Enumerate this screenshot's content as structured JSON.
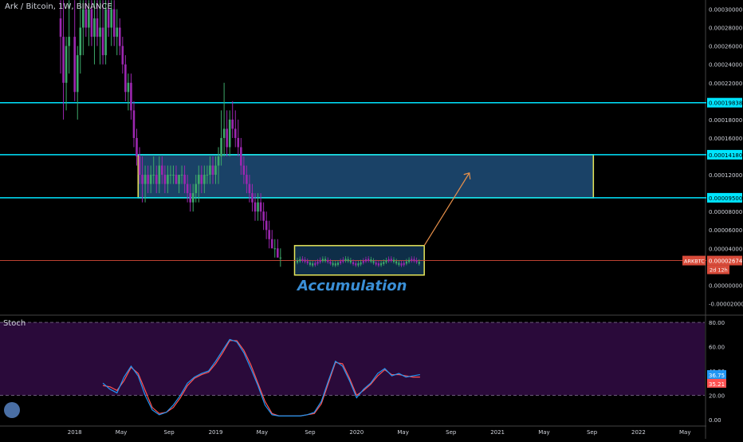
{
  "header": {
    "symbol_line": "Ark / Bitcoin, 1W, BINANCE"
  },
  "annotation": {
    "text": "Accumulation"
  },
  "price_tag": {
    "symbol": "ARKBTC",
    "price": "0.00002674",
    "countdown": "2d 12h"
  },
  "stoch": {
    "title": "Stoch",
    "k_value": "36.75",
    "d_value": "35.21"
  },
  "colors": {
    "background": "#000000",
    "up_candle": "#3da86a",
    "down_candle": "#9c27b0",
    "support_line": "#00e5ff",
    "zone_fill": "#1f4e79",
    "zone_border": "#e6e65a",
    "current_line": "#d84b3a",
    "arrow": "#e8904a",
    "annotation": "#3a8fd6",
    "stoch_k": "#2196f3",
    "stoch_d": "#ff5252",
    "stoch_band": "#2a0a3a",
    "axis_text": "#d1d4dc"
  },
  "chart_data": {
    "type": "line",
    "price_axis": {
      "ylim": [
        -3e-05,
        0.00031
      ],
      "tick_labels": [
        "0.00030000",
        "0.00028000",
        "0.00026000",
        "0.00024000",
        "0.00022000",
        "0.00018000",
        "0.00016000",
        "0.00012000",
        "0.00008000",
        "0.00006000",
        "0.00004000",
        "0.00000000",
        "-0.00002000"
      ],
      "tick_values": [
        0.0003,
        0.00028,
        0.00026,
        0.00024,
        0.00022,
        0.00018,
        0.00016,
        0.00012,
        8e-05,
        6e-05,
        4e-05,
        0.0,
        -2e-05
      ]
    },
    "time_axis": {
      "labels": [
        "2018",
        "May",
        "Sep",
        "2019",
        "May",
        "Sep",
        "2020",
        "May",
        "Sep",
        "2021",
        "May",
        "Sep",
        "2022",
        "May"
      ],
      "values": [
        2018.0,
        2018.33,
        2018.67,
        2019.0,
        2019.33,
        2019.67,
        2020.0,
        2020.33,
        2020.67,
        2021.0,
        2021.33,
        2021.67,
        2022.0,
        2022.33
      ]
    },
    "horizontal_levels": [
      {
        "label": "0.00019838",
        "value": 0.00019838
      },
      {
        "label": "0.00014180",
        "value": 0.0001418
      },
      {
        "label": "0.00009500",
        "value": 9.5e-05
      }
    ],
    "current_price": 2.674e-05,
    "zones": [
      {
        "name": "resistance-zone",
        "x_start": 2018.45,
        "x_end": 2021.68,
        "y_low": 9.5e-05,
        "y_high": 0.0001418
      },
      {
        "name": "accumulation-zone",
        "x_start": 2019.56,
        "x_end": 2020.48,
        "y_low": 1.1e-05,
        "y_high": 4.3e-05
      }
    ],
    "arrow": {
      "x_start": 2020.48,
      "y_start": 4.3e-05,
      "x_end": 2020.8,
      "y_end": 0.000122
    },
    "candles_ohlc_approx": [
      [
        2017.9,
        0.00029,
        0.00031,
        0.00023,
        0.00027
      ],
      [
        2017.92,
        0.00027,
        0.00031,
        0.00018,
        0.00022
      ],
      [
        2017.94,
        0.00022,
        0.00027,
        0.00019,
        0.00026
      ],
      [
        2017.96,
        0.00026,
        0.00031,
        0.00023,
        0.00027
      ],
      [
        2018.0,
        0.00027,
        0.00031,
        0.0002,
        0.00021
      ],
      [
        2018.02,
        0.00021,
        0.00026,
        0.00018,
        0.00025
      ],
      [
        2018.04,
        0.00025,
        0.00031,
        0.00023,
        0.00028
      ],
      [
        2018.06,
        0.00028,
        0.00031,
        0.00025,
        0.0003
      ],
      [
        2018.08,
        0.0003,
        0.00031,
        0.00027,
        0.00028
      ],
      [
        2018.1,
        0.00028,
        0.00031,
        0.00026,
        0.0003
      ],
      [
        2018.12,
        0.0003,
        0.00031,
        0.00026,
        0.00027
      ],
      [
        2018.14,
        0.00027,
        0.00031,
        0.00024,
        0.00029
      ],
      [
        2018.16,
        0.00029,
        0.00031,
        0.00026,
        0.00027
      ],
      [
        2018.18,
        0.00027,
        0.00031,
        0.00024,
        0.00028
      ],
      [
        2018.2,
        0.00028,
        0.00031,
        0.00024,
        0.00025
      ],
      [
        2018.22,
        0.00025,
        0.00031,
        0.00024,
        0.0003
      ],
      [
        2018.24,
        0.0003,
        0.00031,
        0.00027,
        0.00028
      ],
      [
        2018.26,
        0.00028,
        0.00031,
        0.00026,
        0.0003
      ],
      [
        2018.28,
        0.0003,
        0.00031,
        0.00026,
        0.00027
      ],
      [
        2018.3,
        0.00027,
        0.0003,
        0.00025,
        0.00028
      ],
      [
        2018.32,
        0.00028,
        0.00029,
        0.00025,
        0.00026
      ],
      [
        2018.34,
        0.00026,
        0.00027,
        0.00023,
        0.00024
      ],
      [
        2018.36,
        0.00024,
        0.00025,
        0.0002,
        0.00021
      ],
      [
        2018.38,
        0.00021,
        0.00023,
        0.00019,
        0.00022
      ],
      [
        2018.4,
        0.00022,
        0.00023,
        0.00018,
        0.00019
      ],
      [
        2018.42,
        0.00019,
        0.0002,
        0.00015,
        0.00016
      ],
      [
        2018.44,
        0.00016,
        0.00017,
        0.00013,
        0.00014
      ],
      [
        2018.46,
        0.00014,
        0.00015,
        0.00011,
        0.00012
      ],
      [
        2018.48,
        0.00012,
        0.00014,
        9e-05,
        0.00011
      ],
      [
        2018.5,
        0.00011,
        0.00013,
        9e-05,
        0.00012
      ],
      [
        2018.52,
        0.00012,
        0.00013,
        0.0001,
        0.00011
      ],
      [
        2018.54,
        0.00011,
        0.00013,
        0.0001,
        0.00012
      ],
      [
        2018.56,
        0.00012,
        0.00014,
        0.00011,
        0.00012
      ],
      [
        2018.58,
        0.00012,
        0.00013,
        0.0001,
        0.00011
      ],
      [
        2018.6,
        0.00011,
        0.00014,
        0.0001,
        0.00013
      ],
      [
        2018.62,
        0.00013,
        0.00014,
        0.00011,
        0.00012
      ],
      [
        2018.64,
        0.00012,
        0.00013,
        0.0001,
        0.00011
      ],
      [
        2018.66,
        0.00011,
        0.00013,
        0.0001,
        0.00012
      ],
      [
        2018.68,
        0.00012,
        0.00013,
        0.00011,
        0.00012
      ],
      [
        2018.7,
        0.00012,
        0.00013,
        0.00011,
        0.00012
      ],
      [
        2018.72,
        0.00012,
        0.00013,
        0.00011,
        0.00011
      ],
      [
        2018.74,
        0.00011,
        0.00012,
        0.0001,
        0.00012
      ],
      [
        2018.76,
        0.00012,
        0.00013,
        0.00011,
        0.00012
      ],
      [
        2018.78,
        0.00012,
        0.00013,
        0.0001,
        0.00011
      ],
      [
        2018.8,
        0.00011,
        0.00012,
        9e-05,
        0.0001
      ],
      [
        2018.82,
        0.0001,
        0.00011,
        8e-05,
        9e-05
      ],
      [
        2018.84,
        9e-05,
        0.00011,
        8e-05,
        0.0001
      ],
      [
        2018.86,
        0.0001,
        0.00012,
        9e-05,
        0.00011
      ],
      [
        2018.88,
        0.00011,
        0.00013,
        9e-05,
        0.00012
      ],
      [
        2018.9,
        0.00012,
        0.00013,
        0.0001,
        0.00011
      ],
      [
        2018.92,
        0.00011,
        0.00013,
        0.0001,
        0.00012
      ],
      [
        2018.94,
        0.00012,
        0.00013,
        0.00011,
        0.00012
      ],
      [
        2018.96,
        0.00012,
        0.00014,
        0.00011,
        0.00013
      ],
      [
        2018.98,
        0.00013,
        0.00014,
        0.00011,
        0.00012
      ],
      [
        2019.0,
        0.00012,
        0.00014,
        0.00011,
        0.00013
      ],
      [
        2019.02,
        0.00013,
        0.00015,
        0.00011,
        0.00014
      ],
      [
        2019.04,
        0.00014,
        0.00019,
        0.00013,
        0.00016
      ],
      [
        2019.06,
        0.00016,
        0.00022,
        0.00014,
        0.00017
      ],
      [
        2019.08,
        0.00017,
        0.00019,
        0.00014,
        0.00015
      ],
      [
        2019.1,
        0.00015,
        0.00019,
        0.00014,
        0.00018
      ],
      [
        2019.12,
        0.00018,
        0.0002,
        0.00016,
        0.00017
      ],
      [
        2019.14,
        0.00017,
        0.00019,
        0.00015,
        0.00016
      ],
      [
        2019.16,
        0.00016,
        0.00018,
        0.00014,
        0.00015
      ],
      [
        2019.18,
        0.00015,
        0.00016,
        0.00012,
        0.00013
      ],
      [
        2019.2,
        0.00013,
        0.00014,
        0.00011,
        0.00012
      ],
      [
        2019.22,
        0.00012,
        0.00013,
        0.0001,
        0.00011
      ],
      [
        2019.24,
        0.00011,
        0.00012,
        9e-05,
        0.0001
      ],
      [
        2019.26,
        0.0001,
        0.00011,
        8e-05,
        9e-05
      ],
      [
        2019.28,
        9e-05,
        0.0001,
        7e-05,
        8e-05
      ],
      [
        2019.3,
        8e-05,
        0.0001,
        7e-05,
        9e-05
      ],
      [
        2019.32,
        9e-05,
        0.0001,
        7e-05,
        8e-05
      ],
      [
        2019.34,
        8e-05,
        9e-05,
        6e-05,
        7e-05
      ],
      [
        2019.36,
        7e-05,
        8e-05,
        5e-05,
        6e-05
      ],
      [
        2019.38,
        6e-05,
        7e-05,
        4e-05,
        5e-05
      ],
      [
        2019.4,
        5e-05,
        6e-05,
        4e-05,
        4e-05
      ],
      [
        2019.42,
        4e-05,
        5e-05,
        3e-05,
        4e-05
      ],
      [
        2019.44,
        4e-05,
        5e-05,
        3e-05,
        3e-05
      ],
      [
        2019.46,
        3e-05,
        4e-05,
        2e-05,
        3e-05
      ]
    ],
    "stoch_series": {
      "ylim": [
        0,
        80
      ],
      "tick_labels": [
        "80.00",
        "60.00",
        "40.00",
        "20.00",
        "0.00"
      ],
      "tick_values": [
        80,
        60,
        40,
        20,
        0
      ],
      "bands": [
        20,
        80
      ],
      "x": [
        2018.2,
        2018.25,
        2018.3,
        2018.35,
        2018.4,
        2018.45,
        2018.5,
        2018.55,
        2018.6,
        2018.65,
        2018.7,
        2018.75,
        2018.8,
        2018.85,
        2018.9,
        2018.95,
        2019.0,
        2019.05,
        2019.1,
        2019.15,
        2019.2,
        2019.25,
        2019.3,
        2019.35,
        2019.4,
        2019.45,
        2019.5,
        2019.55,
        2019.6,
        2019.65,
        2019.7,
        2019.75,
        2019.8,
        2019.85,
        2019.9,
        2019.95,
        2020.0,
        2020.05,
        2020.1,
        2020.15,
        2020.2,
        2020.25,
        2020.3,
        2020.35,
        2020.4,
        2020.45
      ],
      "k": [
        30,
        25,
        22,
        35,
        44,
        36,
        20,
        8,
        4,
        6,
        12,
        20,
        30,
        35,
        38,
        40,
        48,
        57,
        66,
        64,
        55,
        42,
        28,
        12,
        4,
        3,
        3,
        3,
        3,
        4,
        6,
        15,
        32,
        48,
        44,
        32,
        18,
        25,
        30,
        38,
        42,
        36,
        38,
        35,
        36,
        37
      ],
      "d": [
        28,
        27,
        24,
        32,
        43,
        38,
        24,
        10,
        5,
        6,
        10,
        18,
        28,
        34,
        37,
        39,
        46,
        55,
        65,
        65,
        57,
        45,
        30,
        15,
        5,
        3,
        3,
        3,
        3,
        4,
        5,
        13,
        30,
        47,
        46,
        34,
        20,
        24,
        29,
        36,
        41,
        37,
        37,
        36,
        35,
        35
      ]
    }
  }
}
